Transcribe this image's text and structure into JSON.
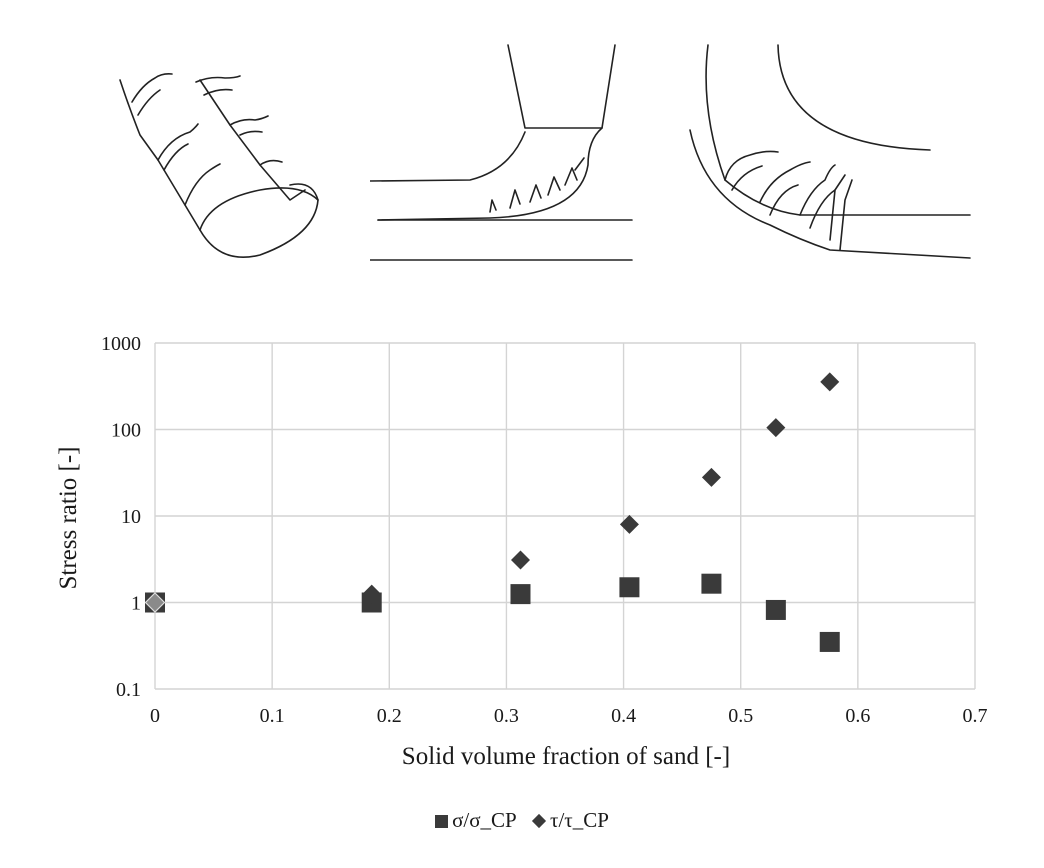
{
  "chart_data": {
    "type": "scatter",
    "title": "",
    "xlabel": "Solid volume fraction of sand [-]",
    "ylabel": "Stress ratio [-]",
    "xlim": [
      0,
      0.7
    ],
    "ylim": [
      0.1,
      1000
    ],
    "y_scale": "log",
    "x_ticks": [
      "0",
      "0.1",
      "0.2",
      "0.3",
      "0.4",
      "0.5",
      "0.6",
      "0.7"
    ],
    "y_ticks": [
      "0.1",
      "1",
      "10",
      "100",
      "1000"
    ],
    "grid": true,
    "legend_position": "bottom",
    "series": [
      {
        "name": "σ/σ_CP",
        "marker": "square",
        "color": "#3a3a3a",
        "x": [
          0,
          0.185,
          0.312,
          0.405,
          0.475,
          0.53,
          0.576
        ],
        "y": [
          1.0,
          1.0,
          1.25,
          1.5,
          1.65,
          0.82,
          0.35
        ]
      },
      {
        "name": "τ/τ_CP",
        "marker": "diamond",
        "color": "#3a3a3a",
        "x": [
          0,
          0.185,
          0.312,
          0.405,
          0.475,
          0.53,
          0.576
        ],
        "y": [
          1.0,
          1.25,
          3.1,
          8.0,
          28,
          105,
          355
        ]
      }
    ]
  },
  "legend": {
    "series1_label": "σ/σ_CP",
    "series2_label": "τ/τ_CP"
  }
}
